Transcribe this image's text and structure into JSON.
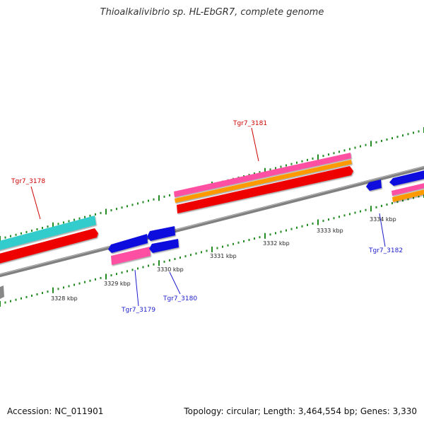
{
  "title": "Thioalkalivibrio sp. HL-EbGR7, complete genome",
  "accession": "Accession: NC_011901",
  "topology": "Topology: circular; Length: 3,464,554 bp; Genes: 3,330",
  "scale_labels": [
    "3328 kbp",
    "3329 kbp",
    "3330 kbp",
    "3331 kbp",
    "3332 kbp",
    "3333 kbp",
    "3334 kbp"
  ],
  "genes_top": [
    {
      "label": "Tgr7_3178",
      "color": "#cc0000"
    },
    {
      "label": "Tgr7_3181",
      "color": "#cc0000"
    }
  ],
  "genes_bottom": [
    {
      "label": "Tgr7_3179",
      "color": "#1a1acc"
    },
    {
      "label": "Tgr7_3180",
      "color": "#1a1acc"
    },
    {
      "label": "Tgr7_3182",
      "color": "#1a1acc"
    }
  ],
  "colors": {
    "backbone": "#808080",
    "cds": "#ee0000",
    "gene_forward": "#ff4fa3",
    "gene_reverse": "#1111dd",
    "orange": "#ff9900",
    "cyan": "#33cccc",
    "tick": "#228b22"
  }
}
